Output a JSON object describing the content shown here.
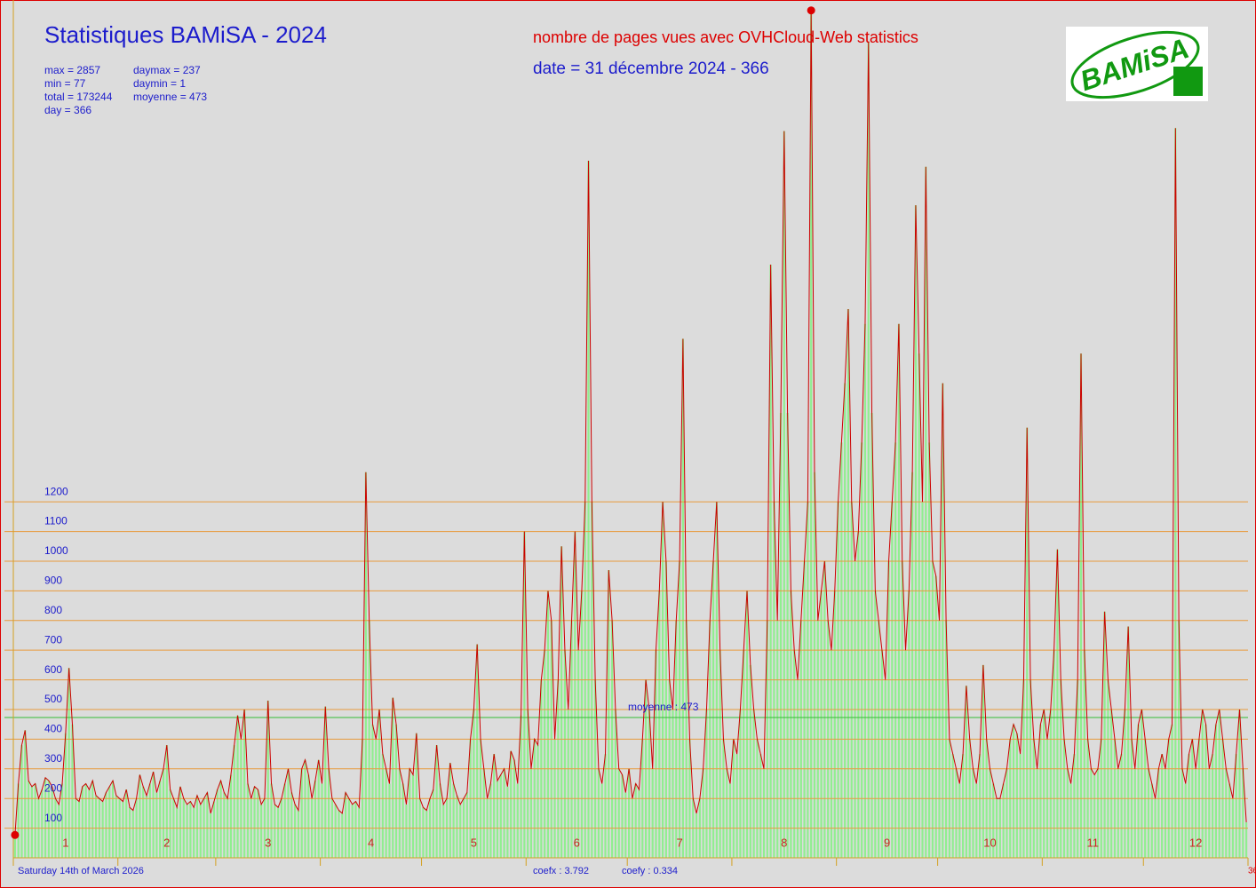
{
  "chart_data": {
    "type": "bar",
    "title": "Statistiques BAMiSA - 2024",
    "subtitle": "nombre de pages vues avec OVHCloud-Web statistics",
    "date_line": "date = 31 décembre 2024 - 366",
    "stats_left": [
      "max = 2857",
      "min = 77",
      "total = 173244",
      "day = 366"
    ],
    "stats_right": [
      "daymax = 237",
      "daymin = 1",
      "moyenne = 473"
    ],
    "logo_text": "BAMiSA",
    "footer_date": "Saturday 14th of March 2026",
    "coefx": "coefx : 3.792",
    "coefy": "coefy : 0.334",
    "mean": 473,
    "mean_label": "moyenne : 473",
    "month_labels": [
      "1",
      "2",
      "3",
      "4",
      "5",
      "6",
      "7",
      "8",
      "9",
      "10",
      "11",
      "12"
    ],
    "xlim": [
      0,
      366
    ],
    "xticks": [
      0,
      31,
      60,
      91,
      121,
      152,
      182,
      213,
      244,
      274,
      305,
      335,
      366
    ],
    "ylim": [
      0,
      2892
    ],
    "yticks": [
      100,
      200,
      300,
      400,
      500,
      600,
      700,
      800,
      900,
      1000,
      1100,
      1200
    ],
    "grid": true,
    "bar_color": "#90ee90",
    "line_color": "#cc0000",
    "values": [
      77,
      250,
      380,
      430,
      260,
      240,
      250,
      200,
      230,
      270,
      260,
      240,
      200,
      180,
      250,
      420,
      640,
      450,
      200,
      190,
      240,
      250,
      230,
      260,
      210,
      200,
      190,
      220,
      240,
      260,
      210,
      200,
      190,
      230,
      170,
      160,
      200,
      280,
      240,
      210,
      250,
      290,
      220,
      260,
      300,
      380,
      230,
      200,
      170,
      240,
      200,
      180,
      190,
      170,
      210,
      180,
      200,
      220,
      150,
      190,
      230,
      260,
      220,
      200,
      280,
      380,
      480,
      400,
      500,
      250,
      200,
      240,
      230,
      180,
      200,
      530,
      250,
      180,
      170,
      200,
      250,
      300,
      220,
      180,
      160,
      300,
      330,
      280,
      200,
      260,
      330,
      250,
      510,
      300,
      200,
      180,
      160,
      150,
      220,
      200,
      180,
      190,
      170,
      400,
      1300,
      800,
      450,
      400,
      500,
      350,
      300,
      250,
      540,
      450,
      300,
      250,
      180,
      300,
      280,
      420,
      200,
      170,
      160,
      200,
      230,
      380,
      250,
      180,
      200,
      320,
      250,
      210,
      180,
      200,
      220,
      400,
      500,
      720,
      400,
      300,
      200,
      250,
      350,
      260,
      280,
      300,
      240,
      360,
      330,
      250,
      480,
      1100,
      500,
      300,
      400,
      380,
      600,
      700,
      900,
      800,
      400,
      600,
      1050,
      700,
      500,
      800,
      1100,
      700,
      900,
      1200,
      2350,
      1200,
      600,
      300,
      250,
      350,
      970,
      800,
      500,
      300,
      280,
      220,
      300,
      200,
      250,
      230,
      400,
      600,
      500,
      300,
      700,
      900,
      1200,
      1000,
      600,
      500,
      800,
      1000,
      1750,
      800,
      400,
      200,
      150,
      200,
      300,
      500,
      800,
      1000,
      1200,
      700,
      400,
      300,
      250,
      400,
      350,
      500,
      700,
      900,
      650,
      500,
      400,
      350,
      300,
      800,
      2000,
      1200,
      800,
      1500,
      2450,
      1500,
      900,
      700,
      600,
      800,
      1000,
      1200,
      2857,
      1300,
      800,
      900,
      1000,
      800,
      700,
      900,
      1200,
      1400,
      1600,
      1850,
      1200,
      1000,
      1100,
      1400,
      1800,
      2750,
      1500,
      900,
      800,
      700,
      600,
      1000,
      1200,
      1400,
      1800,
      1000,
      700,
      900,
      1300,
      2200,
      1700,
      1200,
      2330,
      1400,
      1000,
      950,
      800,
      1600,
      800,
      400,
      350,
      300,
      250,
      350,
      580,
      400,
      300,
      250,
      350,
      650,
      400,
      300,
      250,
      200,
      200,
      250,
      300,
      400,
      450,
      420,
      350,
      600,
      1450,
      600,
      400,
      300,
      450,
      500,
      400,
      500,
      700,
      1040,
      600,
      400,
      300,
      250,
      350,
      600,
      1700,
      700,
      400,
      300,
      280,
      300,
      400,
      830,
      600,
      500,
      400,
      300,
      350,
      500,
      780,
      400,
      300,
      450,
      500,
      400,
      300,
      250,
      200,
      300,
      350,
      300,
      400,
      450,
      2460,
      800,
      300,
      250,
      350,
      400,
      300,
      400,
      500,
      450,
      300,
      350,
      450,
      500,
      400,
      300,
      250,
      200,
      350,
      500,
      300,
      120
    ]
  }
}
